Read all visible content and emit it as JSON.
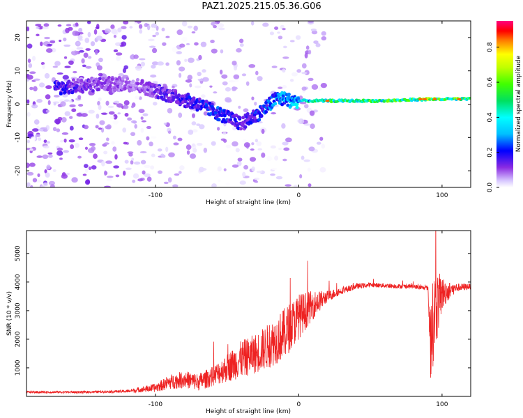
{
  "title": "PAZ1.2025.215.05.36.G06",
  "chart_data": [
    {
      "type": "heatmap",
      "xlabel": "Height of straight line (km)",
      "ylabel": "Frequency (Hz)",
      "xlim": [
        -190,
        120
      ],
      "ylim": [
        -25,
        25
      ],
      "xticks": [
        -100,
        0,
        100
      ],
      "yticks": [
        -20,
        -10,
        0,
        10,
        20
      ],
      "colorbar": {
        "label": "Normalized spectral amplitude",
        "range": [
          0,
          0.95
        ],
        "ticks": [
          0.0,
          0.2,
          0.4,
          0.6,
          0.8
        ]
      },
      "ridge": {
        "x": [
          -165,
          -140,
          -115,
          -100,
          -85,
          -70,
          -55,
          -40,
          -25,
          -15,
          -5,
          0,
          20,
          60,
          90,
          100,
          120
        ],
        "y": [
          5,
          6,
          6,
          4,
          2,
          0,
          -3,
          -6,
          -2,
          2,
          1,
          1,
          1,
          1,
          1.5,
          1.5,
          1.5
        ],
        "amplitude": [
          0.15,
          0.1,
          0.08,
          0.12,
          0.15,
          0.18,
          0.2,
          0.15,
          0.2,
          0.25,
          0.3,
          0.3,
          0.45,
          0.45,
          0.5,
          0.5,
          0.45
        ]
      },
      "grid": false
    },
    {
      "type": "line",
      "xlabel": "Height of straight line (km)",
      "ylabel": "SNR (10 * v/v)",
      "xlim": [
        -190,
        120
      ],
      "ylim": [
        0,
        5800
      ],
      "xticks": [
        -100,
        0,
        100
      ],
      "yticks": [
        1000,
        2000,
        3000,
        4000,
        5000
      ],
      "series": [
        {
          "color": "#ee2222",
          "x": [
            -190,
            -150,
            -120,
            -100,
            -90,
            -80,
            -70,
            -60,
            -50,
            -40,
            -30,
            -20,
            -10,
            0,
            10,
            20,
            30,
            40,
            50,
            60,
            70,
            80,
            85,
            90,
            92,
            95,
            100,
            105,
            110,
            120
          ],
          "y": [
            150,
            150,
            180,
            300,
            500,
            600,
            500,
            700,
            1000,
            1300,
            1500,
            1800,
            2200,
            2800,
            3200,
            3500,
            3700,
            3850,
            3900,
            3880,
            3850,
            3850,
            3800,
            3800,
            2000,
            3000,
            3600,
            3700,
            3800,
            3850
          ],
          "noise": [
            40,
            40,
            50,
            150,
            250,
            300,
            300,
            350,
            500,
            650,
            700,
            800,
            900,
            800,
            500,
            200,
            120,
            100,
            80,
            80,
            80,
            80,
            80,
            80,
            1500,
            1500,
            600,
            300,
            150,
            100
          ]
        }
      ],
      "grid": false
    }
  ]
}
